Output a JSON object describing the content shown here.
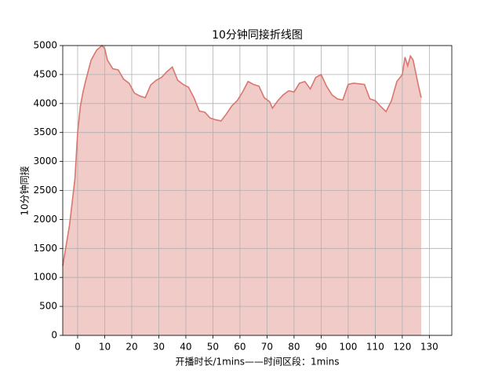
{
  "chart_data": {
    "type": "area",
    "title": "10分钟同接折线图",
    "x_label": "开播时长/1mins——时间区段：1mins",
    "y_label": "10分钟同接",
    "x": [
      -5.5,
      -3,
      -1,
      0,
      1,
      2,
      3,
      5,
      7,
      9,
      10,
      11,
      13,
      15,
      17,
      19,
      21,
      23,
      25,
      27,
      29,
      31,
      33,
      35,
      37,
      39,
      41,
      43,
      45,
      47,
      49,
      51,
      53,
      55,
      57,
      59,
      61,
      63,
      65,
      67,
      69,
      71,
      72,
      74,
      76,
      78,
      80,
      82,
      84,
      86,
      88,
      90,
      92,
      94,
      96,
      98,
      100,
      102,
      104,
      106,
      108,
      110,
      112,
      114,
      116,
      118,
      120,
      121,
      122,
      123,
      124,
      126,
      127
    ],
    "values": [
      1200,
      1900,
      2700,
      3500,
      3950,
      4200,
      4400,
      4750,
      4920,
      5000,
      4950,
      4750,
      4600,
      4580,
      4420,
      4350,
      4180,
      4130,
      4100,
      4320,
      4400,
      4450,
      4550,
      4630,
      4400,
      4330,
      4280,
      4100,
      3870,
      3850,
      3750,
      3720,
      3700,
      3820,
      3960,
      4050,
      4200,
      4380,
      4330,
      4300,
      4100,
      4030,
      3920,
      4050,
      4150,
      4220,
      4200,
      4350,
      4380,
      4250,
      4450,
      4500,
      4300,
      4150,
      4080,
      4060,
      4330,
      4350,
      4340,
      4330,
      4080,
      4050,
      3950,
      3860,
      4050,
      4380,
      4500,
      4800,
      4650,
      4820,
      4750,
      4300,
      4100
    ],
    "color": "#d9776f",
    "fill_color": "#f0cbc8",
    "xlim": [
      -5.5,
      138.3
    ],
    "ylim": [
      0,
      5000
    ],
    "xticks": [
      0,
      10,
      20,
      30,
      40,
      50,
      60,
      70,
      80,
      90,
      100,
      110,
      120,
      130
    ],
    "yticks": [
      0,
      500,
      1000,
      1500,
      2000,
      2500,
      3000,
      3500,
      4000,
      4500,
      5000
    ],
    "grid": true
  }
}
